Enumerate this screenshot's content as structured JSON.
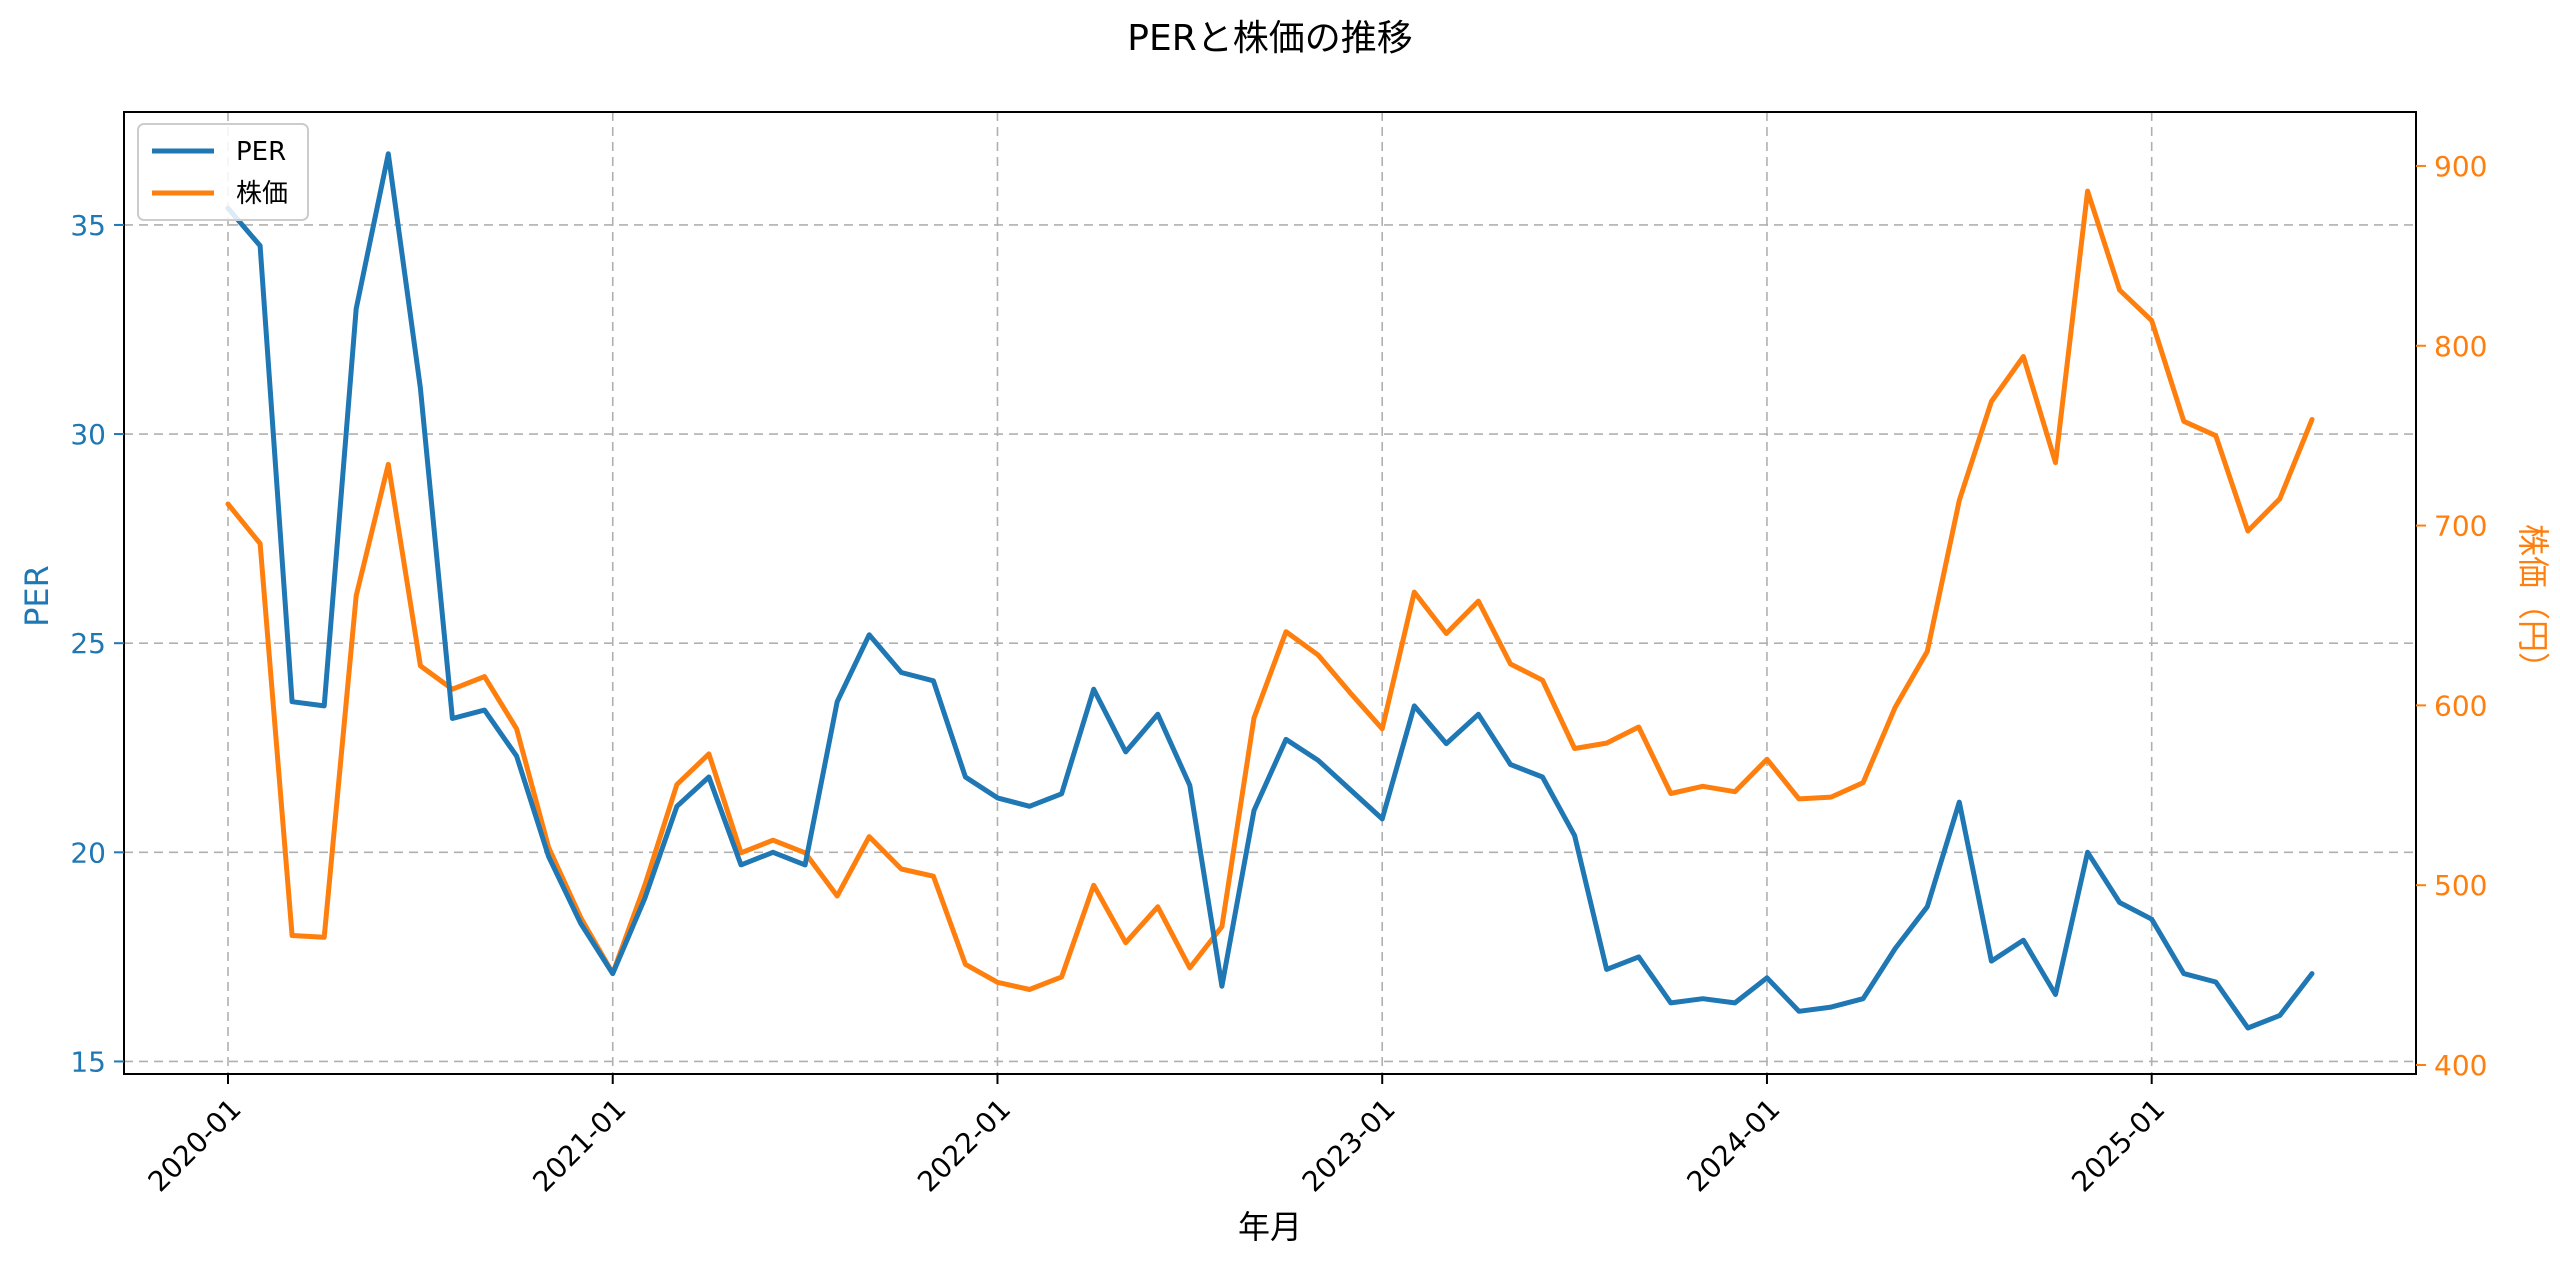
{
  "chart_data": {
    "type": "line",
    "title": "PERと株価の推移",
    "xlabel": "年月",
    "ylabel_left": "PER",
    "ylabel_right": "株価（円）",
    "x_tick_labels": [
      "2020-01",
      "2021-01",
      "2022-01",
      "2023-01",
      "2024-01",
      "2025-01"
    ],
    "y_left_ticks": [
      15,
      20,
      25,
      30,
      35
    ],
    "y_right_ticks": [
      400,
      500,
      600,
      700,
      800,
      900
    ],
    "y_left_range": [
      14.7,
      37.7
    ],
    "y_right_range": [
      395,
      930
    ],
    "x": [
      "2020-01",
      "2020-02",
      "2020-03",
      "2020-04",
      "2020-05",
      "2020-06",
      "2020-07",
      "2020-08",
      "2020-09",
      "2020-10",
      "2020-11",
      "2020-12",
      "2021-01",
      "2021-02",
      "2021-03",
      "2021-04",
      "2021-05",
      "2021-06",
      "2021-07",
      "2021-08",
      "2021-09",
      "2021-10",
      "2021-11",
      "2021-12",
      "2022-01",
      "2022-02",
      "2022-03",
      "2022-04",
      "2022-05",
      "2022-06",
      "2022-07",
      "2022-08",
      "2022-09",
      "2022-10",
      "2022-11",
      "2022-12",
      "2023-01",
      "2023-02",
      "2023-03",
      "2023-04",
      "2023-05",
      "2023-06",
      "2023-07",
      "2023-08",
      "2023-09",
      "2023-10",
      "2023-11",
      "2023-12",
      "2024-01",
      "2024-02",
      "2024-03",
      "2024-04",
      "2024-05",
      "2024-06",
      "2024-07",
      "2024-08",
      "2024-09",
      "2024-10",
      "2024-11",
      "2024-12",
      "2025-01",
      "2025-02",
      "2025-03",
      "2025-04",
      "2025-05",
      "2025-06"
    ],
    "series": [
      {
        "name": "PER",
        "axis": "left",
        "color": "#1f77b4",
        "values": [
          35.4,
          34.5,
          23.6,
          23.5,
          33.0,
          36.7,
          31.1,
          23.2,
          23.4,
          22.3,
          19.9,
          18.3,
          17.1,
          18.9,
          21.1,
          21.8,
          19.7,
          20.0,
          19.7,
          23.6,
          25.2,
          24.3,
          24.1,
          21.8,
          21.3,
          21.1,
          21.4,
          23.9,
          22.4,
          23.3,
          21.6,
          16.8,
          21.0,
          22.7,
          22.2,
          21.5,
          20.8,
          23.5,
          22.6,
          23.3,
          22.1,
          21.8,
          20.4,
          17.2,
          17.5,
          16.4,
          16.5,
          16.4,
          17.0,
          16.2,
          16.3,
          16.5,
          17.7,
          18.7,
          21.2,
          17.4,
          17.9,
          16.6,
          20.0,
          18.8,
          18.4,
          17.1,
          16.9,
          15.8,
          16.1,
          17.1
        ]
      },
      {
        "name": "株価",
        "axis": "right",
        "color": "#ff7f0e",
        "values": [
          712,
          690,
          472,
          471,
          661,
          734,
          622,
          609,
          616,
          587,
          521,
          482,
          451,
          500,
          556,
          573,
          518,
          525,
          518,
          494,
          527,
          509,
          505,
          456,
          446,
          442,
          449,
          500,
          468,
          488,
          454,
          477,
          593,
          641,
          628,
          607,
          587,
          663,
          640,
          658,
          623,
          614,
          576,
          579,
          588,
          551,
          555,
          552,
          570,
          548,
          549,
          557,
          599,
          630,
          714,
          769,
          794,
          735,
          886,
          831,
          814,
          758,
          750,
          697,
          715,
          759
        ]
      }
    ],
    "legend": {
      "placement": "upper-left",
      "entries": [
        "PER",
        "株価"
      ]
    },
    "grid": true
  }
}
